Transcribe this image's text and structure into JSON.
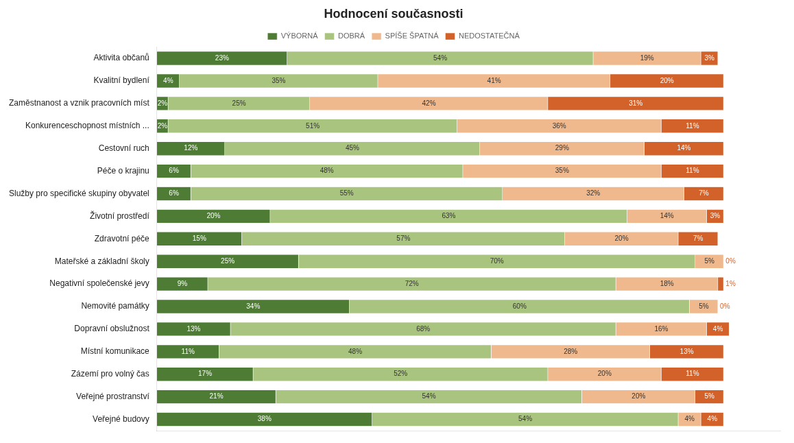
{
  "chart_data": {
    "type": "bar",
    "orientation": "horizontal",
    "stacked": true,
    "title": "Hodnocení současnosti",
    "categories": [
      "Aktivita občanů",
      "Kvalitní bydlení",
      "Zaměstnanost a vznik pracovních míst",
      "Konkurenceschopnost místních ...",
      "Cestovní ruch",
      "Péče o krajinu",
      "Služby pro specifické skupiny obyvatel",
      "Životní prostředí",
      "Zdravotní péče",
      "Mateřské a základní školy",
      "Negativní společenské jevy",
      "Nemovité památky",
      "Dopravní obslužnost",
      "Místní komunikace",
      "Zázemí pro volný čas",
      "Veřejné prostranství",
      "Veřejné budovy"
    ],
    "series": [
      {
        "name": "VÝBORNÁ",
        "color": "#4e7c35",
        "values": [
          23,
          4,
          2,
          2,
          12,
          6,
          6,
          20,
          15,
          25,
          9,
          34,
          13,
          11,
          17,
          21,
          38
        ],
        "value_labels": [
          "23%",
          "4%",
          "2%",
          "2%",
          "12%",
          "6%",
          "6%",
          "20%",
          "15%",
          "25%",
          "9%",
          "34%",
          "13%",
          "11%",
          "17%",
          "21%",
          "38%"
        ]
      },
      {
        "name": "DOBRÁ",
        "color": "#a9c47f",
        "values": [
          54,
          35,
          25,
          51,
          45,
          48,
          55,
          63,
          57,
          70,
          72,
          60,
          68,
          48,
          52,
          54,
          54
        ],
        "value_labels": [
          "54%",
          "35%",
          "25%",
          "51%",
          "45%",
          "48%",
          "55%",
          "63%",
          "57%",
          "70%",
          "72%",
          "60%",
          "68%",
          "48%",
          "52%",
          "54%",
          "54%"
        ]
      },
      {
        "name": "SPÍŠE ŠPATNÁ",
        "color": "#f0b98d",
        "values": [
          19,
          41,
          42,
          36,
          29,
          35,
          32,
          14,
          20,
          5,
          18,
          5,
          16,
          28,
          20,
          20,
          4
        ],
        "value_labels": [
          "19%",
          "41%",
          "42%",
          "36%",
          "29%",
          "35%",
          "32%",
          "14%",
          "20%",
          "5%",
          "18%",
          "5%",
          "16%",
          "28%",
          "20%",
          "20%",
          "4%"
        ]
      },
      {
        "name": "NEDOSTATEČNÁ",
        "color": "#d2622a",
        "values": [
          3,
          20,
          31,
          11,
          14,
          11,
          7,
          3,
          7,
          0,
          1,
          0,
          4,
          13,
          11,
          5,
          4
        ],
        "value_labels": [
          "3%",
          "20%",
          "31%",
          "11%",
          "14%",
          "11%",
          "7%",
          "3%",
          "7%",
          "0%",
          "1%",
          "0%",
          "4%",
          "13%",
          "11%",
          "5%",
          "4%"
        ]
      }
    ],
    "xlim": [
      0,
      110
    ],
    "tick_labels": "y",
    "grid": false,
    "legend": "top",
    "data_labels": true
  }
}
